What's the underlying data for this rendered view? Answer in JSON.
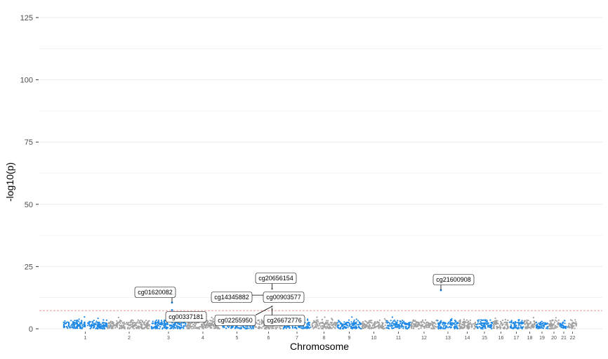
{
  "chart_data": {
    "type": "scatter",
    "subtype": "manhattan",
    "title": "",
    "xlabel": "Chromosome",
    "ylabel": "-log10(p)",
    "ylim": [
      0,
      125
    ],
    "yticks": [
      0,
      25,
      50,
      75,
      100,
      125
    ],
    "grid": "horizontal",
    "legend": "none",
    "colors": {
      "odd": "#1e88e5",
      "even": "#a0a0a0",
      "threshold": "#e57373",
      "grid": "#ebebeb",
      "label_line": "#000000"
    },
    "significance_threshold": 7.3,
    "chromosomes": [
      {
        "label": "1"
      },
      {
        "label": "2"
      },
      {
        "label": "3"
      },
      {
        "label": "4"
      },
      {
        "label": "5"
      },
      {
        "label": "6"
      },
      {
        "label": "7"
      },
      {
        "label": "8"
      },
      {
        "label": "9"
      },
      {
        "label": "10"
      },
      {
        "label": "11"
      },
      {
        "label": "12"
      },
      {
        "label": "13"
      },
      {
        "label": "14"
      },
      {
        "label": "15"
      },
      {
        "label": "16"
      },
      {
        "label": "17"
      },
      {
        "label": "18"
      },
      {
        "label": "19"
      },
      {
        "label": "20"
      },
      {
        "label": "21"
      },
      {
        "label": "22"
      }
    ],
    "annotations": [
      {
        "label": "cg01620082",
        "chromosome": "3",
        "y": 10.5
      },
      {
        "label": "cg00337181",
        "chromosome": "3",
        "y": 7.5
      },
      {
        "label": "cg14345882",
        "chromosome": "6",
        "y": 13.5
      },
      {
        "label": "cg20656154",
        "chromosome": "6",
        "y": 16.0
      },
      {
        "label": "cg00903577",
        "chromosome": "6",
        "y": 12.5
      },
      {
        "label": "cg02255950",
        "chromosome": "6",
        "y": 9.0
      },
      {
        "label": "cg26672776",
        "chromosome": "6",
        "y": 8.0
      },
      {
        "label": "cg21600908",
        "chromosome": "13",
        "y": 15.5
      }
    ]
  }
}
